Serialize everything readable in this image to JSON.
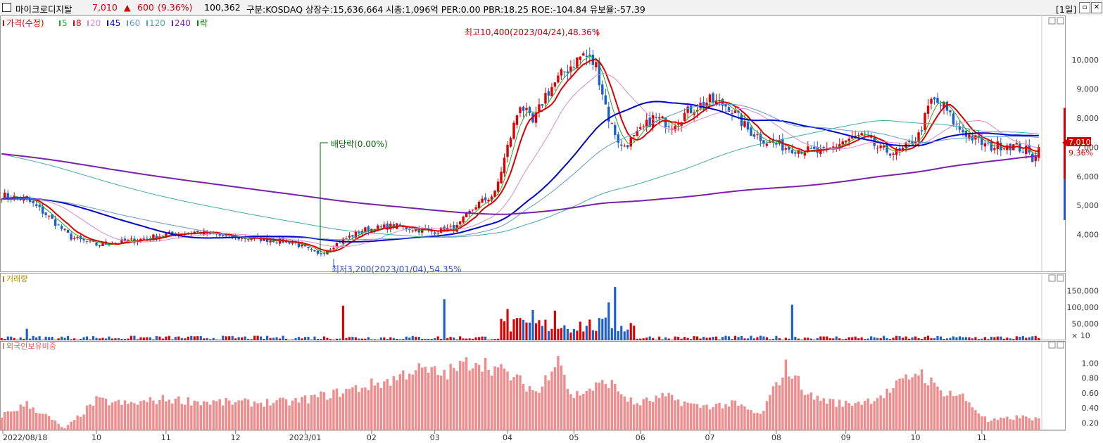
{
  "header": {
    "name": "마이크로디지탈",
    "price": "7,010",
    "change_arrow": "▲",
    "change": "600",
    "change_pct": "(9.36%)",
    "volume": "100,362",
    "info": "구분:KOSDAQ 상장수:15,636,664 시총:1,096억 PER:0.00 PBR:18.25 ROE:-104.84 유보율:-57.39",
    "period": "[1일]",
    "up_color": "#d40000"
  },
  "legend": {
    "price_label": "가격(수정)",
    "ma": [
      {
        "label": "5",
        "color": "#22aa22"
      },
      {
        "label": "8",
        "color": "#dd0000"
      },
      {
        "label": "20",
        "color": "#dd88cc"
      },
      {
        "label": "45",
        "color": "#0000cc"
      },
      {
        "label": "60",
        "color": "#6699cc"
      },
      {
        "label": "120",
        "color": "#44aaaa"
      },
      {
        "label": "240",
        "color": "#7722aa"
      },
      {
        "label": "락",
        "color": "#008800"
      }
    ]
  },
  "annotations": {
    "high": "최고10,400(2023/04/24),48.36%",
    "low": "최저3,200(2023/01/04),54.35%",
    "dividend": "배당락(0.00%)"
  },
  "right_panel": {
    "price": "7,010",
    "pct": "9.36%"
  },
  "volume_panel": {
    "title": "거래량",
    "unit": "× 10"
  },
  "foreign_panel": {
    "title": "외국인보유비중"
  },
  "chart_data": [
    {
      "type": "candlestick",
      "title": "가격(수정)",
      "y_ticks": [
        4000,
        5000,
        6000,
        7000,
        8000,
        9000,
        10000
      ],
      "y_tick_labels": [
        "4,000",
        "5,000",
        "6,000",
        "7,000",
        "8,000",
        "9,000",
        "10,000"
      ],
      "ylim": [
        3000,
        10800
      ],
      "x_tick_labels": [
        "2022/08/18",
        "10",
        "11",
        "12",
        "2023/01",
        "02",
        "03",
        "04",
        "05",
        "06",
        "07",
        "08",
        "09",
        "10",
        "11"
      ],
      "close_path": [
        [
          0,
          5350
        ],
        [
          8,
          5200
        ],
        [
          14,
          4700
        ],
        [
          22,
          3900
        ],
        [
          30,
          3650
        ],
        [
          42,
          3800
        ],
        [
          52,
          4000
        ],
        [
          62,
          4100
        ],
        [
          72,
          3900
        ],
        [
          82,
          3850
        ],
        [
          92,
          3750
        ],
        [
          100,
          3300
        ],
        [
          106,
          3700
        ],
        [
          114,
          4150
        ],
        [
          124,
          4300
        ],
        [
          136,
          4100
        ],
        [
          144,
          4250
        ],
        [
          150,
          5000
        ],
        [
          156,
          5400
        ],
        [
          160,
          7000
        ],
        [
          164,
          8500
        ],
        [
          168,
          7800
        ],
        [
          172,
          8800
        ],
        [
          178,
          9600
        ],
        [
          184,
          10200
        ],
        [
          188,
          9800
        ],
        [
          192,
          8000
        ],
        [
          196,
          7000
        ],
        [
          200,
          7300
        ],
        [
          206,
          8000
        ],
        [
          212,
          7800
        ],
        [
          218,
          8300
        ],
        [
          224,
          8600
        ],
        [
          230,
          8400
        ],
        [
          236,
          7600
        ],
        [
          242,
          7200
        ],
        [
          248,
          7000
        ],
        [
          254,
          6900
        ],
        [
          260,
          6800
        ],
        [
          266,
          7200
        ],
        [
          272,
          7400
        ],
        [
          278,
          6900
        ],
        [
          284,
          6800
        ],
        [
          290,
          7400
        ],
        [
          294,
          8600
        ],
        [
          298,
          8400
        ],
        [
          302,
          7700
        ],
        [
          306,
          7400
        ],
        [
          312,
          7000
        ],
        [
          318,
          7100
        ],
        [
          324,
          6900
        ],
        [
          326,
          6600
        ],
        [
          328,
          7010
        ]
      ],
      "series": [
        {
          "name": "5",
          "color": "#22aa22"
        },
        {
          "name": "8",
          "color": "#dd0000"
        },
        {
          "name": "20",
          "color": "#dd88cc"
        },
        {
          "name": "45",
          "color": "#0000cc"
        },
        {
          "name": "60",
          "color": "#6699cc"
        },
        {
          "name": "120",
          "color": "#44aaaa"
        },
        {
          "name": "240",
          "color": "#7722aa"
        }
      ],
      "last_price": 7010,
      "high": {
        "value": 10400,
        "date": "2023/04/24"
      },
      "low": {
        "value": 3200,
        "date": "2023/01/04"
      }
    },
    {
      "type": "bar",
      "title": "거래량",
      "y_tick_labels": [
        "150,000",
        "100,000",
        "50,000"
      ],
      "y_ticks": [
        150000,
        100000,
        50000
      ],
      "ylim": [
        0,
        175000
      ],
      "spikes": [
        {
          "bar": 8,
          "value": 35000
        },
        {
          "bar": 108,
          "value": 105000
        },
        {
          "bar": 140,
          "value": 125000
        },
        {
          "bar": 160,
          "value": 95000
        },
        {
          "bar": 168,
          "value": 92000
        },
        {
          "bar": 175,
          "value": 90000
        },
        {
          "bar": 192,
          "value": 115000
        },
        {
          "bar": 194,
          "value": 162000
        },
        {
          "bar": 250,
          "value": 108000
        }
      ]
    },
    {
      "type": "bar",
      "title": "외국인보유비중",
      "y_ticks": [
        1.0,
        0.8,
        0.6,
        0.4,
        0.2
      ],
      "y_tick_labels": [
        "1.00",
        "0.80",
        "0.60",
        "0.40",
        "0.20"
      ],
      "ylim": [
        0.1,
        1.2
      ],
      "profile": [
        [
          0,
          0.3
        ],
        [
          8,
          0.45
        ],
        [
          14,
          0.3
        ],
        [
          20,
          0.12
        ],
        [
          30,
          0.5
        ],
        [
          40,
          0.45
        ],
        [
          52,
          0.52
        ],
        [
          64,
          0.48
        ],
        [
          76,
          0.47
        ],
        [
          92,
          0.48
        ],
        [
          106,
          0.6
        ],
        [
          116,
          0.7
        ],
        [
          124,
          0.78
        ],
        [
          130,
          0.92
        ],
        [
          140,
          0.85
        ],
        [
          150,
          1.05
        ],
        [
          160,
          0.85
        ],
        [
          170,
          0.6
        ],
        [
          176,
          1.15
        ],
        [
          180,
          0.55
        ],
        [
          192,
          0.75
        ],
        [
          200,
          0.45
        ],
        [
          210,
          0.55
        ],
        [
          220,
          0.42
        ],
        [
          232,
          0.45
        ],
        [
          240,
          0.3
        ],
        [
          248,
          0.95
        ],
        [
          256,
          0.55
        ],
        [
          266,
          0.45
        ],
        [
          274,
          0.5
        ],
        [
          280,
          0.6
        ],
        [
          290,
          0.9
        ],
        [
          296,
          0.65
        ],
        [
          304,
          0.55
        ],
        [
          312,
          0.22
        ],
        [
          322,
          0.28
        ],
        [
          328,
          0.25
        ]
      ]
    }
  ]
}
